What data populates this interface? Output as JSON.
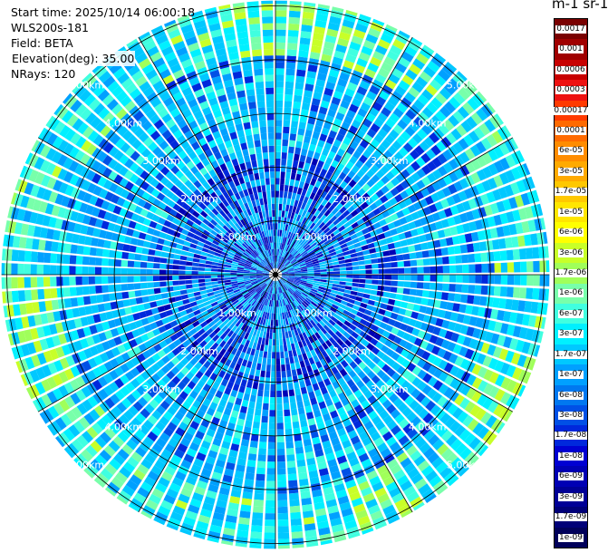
{
  "header": {
    "start_time": "Start time: 2025/10/14 06:00:18",
    "instrument": "WLS200s-181",
    "field": "Field: BETA",
    "elevation": "Elevation(deg): 35.00",
    "nrays": "NRays: 120"
  },
  "colorbar": {
    "unit_label": "m-1 sr-1",
    "labels_top_to_bottom": [
      "0.0017",
      "0.001",
      "0.0006",
      "0.0003",
      "0.00017",
      "0.0001",
      "6e-05",
      "3e-05",
      "1.7e-05",
      "1e-05",
      "6e-06",
      "3e-06",
      "1.7e-06",
      "1e-06",
      "6e-07",
      "3e-07",
      "1.7e-07",
      "1e-07",
      "6e-08",
      "3e-08",
      "1.7e-08",
      "1e-08",
      "6e-09",
      "3e-09",
      "1.7e-09",
      "1e-09"
    ],
    "colors_top_to_bottom": [
      "#7a0000",
      "#a00000",
      "#c80000",
      "#ee1111",
      "#ff3a00",
      "#ff6a00",
      "#ff8c00",
      "#ffaa00",
      "#ffc800",
      "#ffe600",
      "#ffff00",
      "#c8ff28",
      "#a0ff5a",
      "#78ffaa",
      "#40ffe0",
      "#00f0ff",
      "#00c8ff",
      "#00a0ff",
      "#0078f0",
      "#0050e6",
      "#0028dc",
      "#0000d2",
      "#0000b4",
      "#000096",
      "#000078",
      "#00005a"
    ]
  },
  "chart_data": {
    "type": "heatmap",
    "projection": "polar-ppi",
    "field": "BETA",
    "nrays": 120,
    "range_rings_km": [
      1,
      2,
      3,
      4,
      5
    ],
    "ring_labels": {
      "r1": "1.00km",
      "r2": "2.00km",
      "r3": "3.00km",
      "r4": "4.00km",
      "r5": "5.00km"
    },
    "max_range_km": 5.1,
    "radial_lines_deg": [
      0,
      30,
      60,
      90,
      120,
      150,
      180,
      210,
      240,
      270,
      300,
      330
    ],
    "color_scale": "log",
    "value_range": [
      1e-09,
      0.0017
    ],
    "typical_value_inner": "1e-08",
    "typical_value_outer": "1.7e-07",
    "high_value_bands": "3e-07 to 1.7e-06 near ring 4-5 km"
  }
}
